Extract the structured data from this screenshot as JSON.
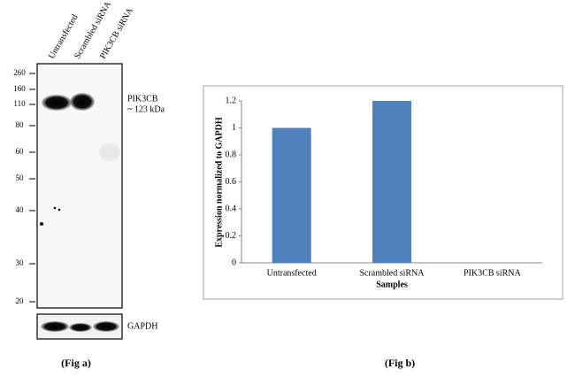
{
  "blot": {
    "lanes": [
      "Untransfected",
      "Scrambled siRNA",
      "PIK3CB siRNA"
    ],
    "markers": [
      260,
      160,
      110,
      80,
      60,
      50,
      40,
      30,
      20
    ],
    "band_label": "PIK3CB",
    "band_size": "~ 123 kDa",
    "control_label": "GAPDH",
    "caption": "(Fig a)"
  },
  "chart_data": {
    "type": "bar",
    "categories": [
      "Untransfected",
      "Scrambled siRNA",
      "PIK3CB siRNA"
    ],
    "values": [
      1,
      1.2,
      0
    ],
    "color": "#4f81bd",
    "xlabel": "Samples",
    "ylabel": "Expression normalized to GAPDH",
    "ylim": [
      0,
      1.2
    ],
    "yticks": [
      0,
      0.2,
      0.4,
      0.6,
      0.8,
      1,
      1.2
    ],
    "caption": "(Fig b)"
  }
}
